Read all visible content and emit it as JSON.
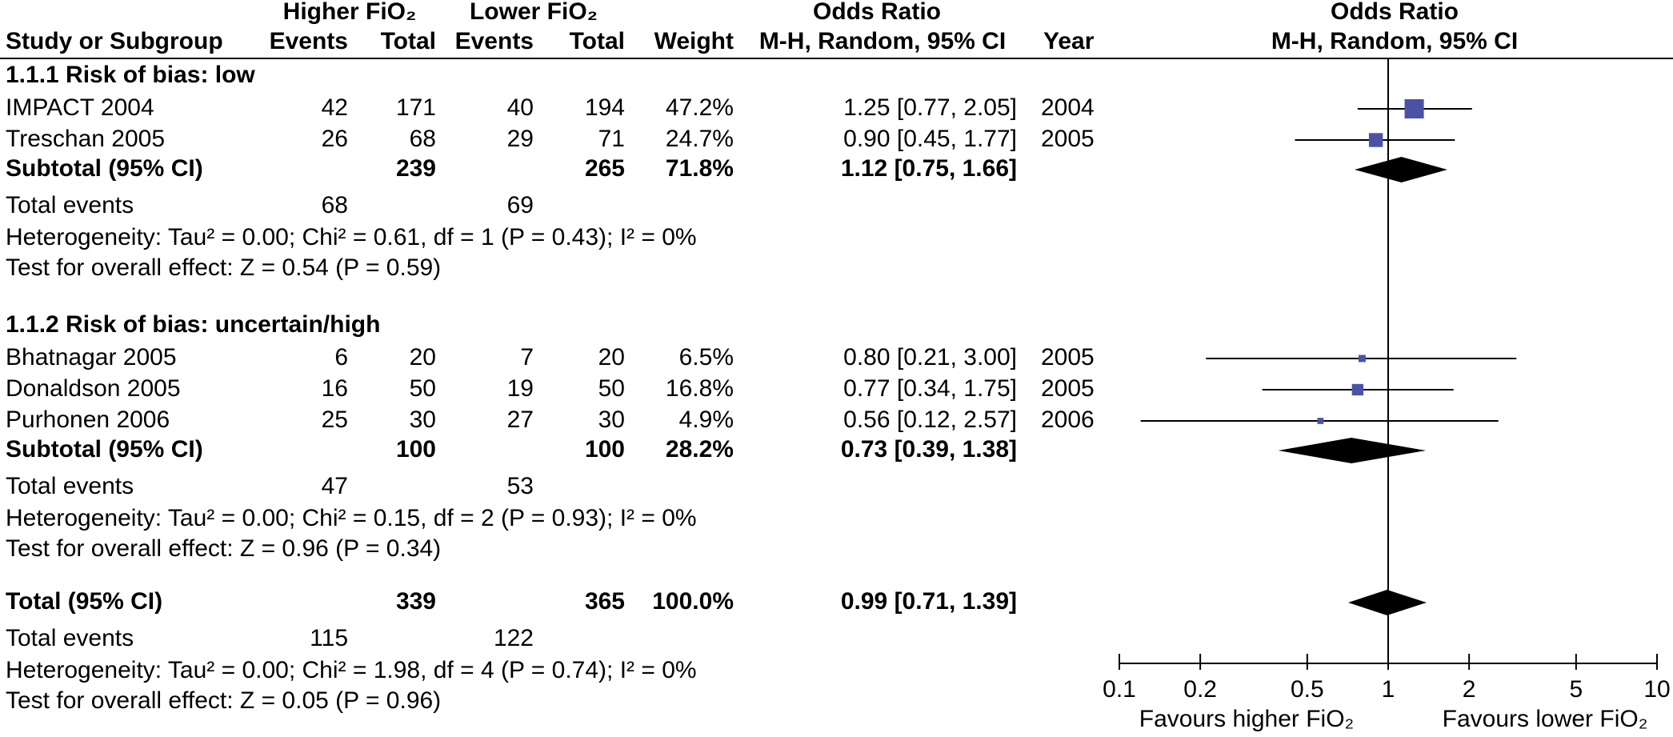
{
  "chart_data": {
    "type": "forest",
    "headers": {
      "group1": "Higher FiO₂",
      "group2": "Lower FiO₂",
      "effect": "Odds Ratio",
      "method": "M-H, Random, 95% CI",
      "study": "Study or Subgroup",
      "events1": "Events",
      "total1": "Total",
      "events2": "Events",
      "total2": "Total",
      "weight": "Weight",
      "year": "Year",
      "plot_title": "Odds Ratio",
      "plot_method": "M-H, Random, 95% CI"
    },
    "subgroups": [
      {
        "title": "1.1.1 Risk of bias: low",
        "studies": [
          {
            "name": "IMPACT 2004",
            "events1": 42,
            "total1": 171,
            "events2": 40,
            "total2": 194,
            "weight": 47.2,
            "weight_label": "47.2%",
            "or": 1.25,
            "ci": [
              0.77,
              2.05
            ],
            "or_label": "1.25 [0.77, 2.05]",
            "year": 2004
          },
          {
            "name": "Treschan 2005",
            "events1": 26,
            "total1": 68,
            "events2": 29,
            "total2": 71,
            "weight": 24.7,
            "weight_label": "24.7%",
            "or": 0.9,
            "ci": [
              0.45,
              1.77
            ],
            "or_label": "0.90 [0.45, 1.77]",
            "year": 2005
          }
        ],
        "subtotal": {
          "name": "Subtotal (95% CI)",
          "total1": 239,
          "total2": 265,
          "weight_label": "71.8%",
          "or": 1.12,
          "ci": [
            0.75,
            1.66
          ],
          "or_label": "1.12 [0.75, 1.66]"
        },
        "total_events": {
          "label": "Total events",
          "events1": 68,
          "events2": 69
        },
        "heterogeneity": "Heterogeneity: Tau² = 0.00; Chi² = 0.61, df = 1 (P = 0.43); I² = 0%",
        "overall_effect": "Test for overall effect: Z = 0.54 (P = 0.59)"
      },
      {
        "title": "1.1.2 Risk of bias: uncertain/high",
        "studies": [
          {
            "name": "Bhatnagar 2005",
            "events1": 6,
            "total1": 20,
            "events2": 7,
            "total2": 20,
            "weight": 6.5,
            "weight_label": "6.5%",
            "or": 0.8,
            "ci": [
              0.21,
              3.0
            ],
            "or_label": "0.80 [0.21, 3.00]",
            "year": 2005
          },
          {
            "name": "Donaldson 2005",
            "events1": 16,
            "total1": 50,
            "events2": 19,
            "total2": 50,
            "weight": 16.8,
            "weight_label": "16.8%",
            "or": 0.77,
            "ci": [
              0.34,
              1.75
            ],
            "or_label": "0.77 [0.34, 1.75]",
            "year": 2005
          },
          {
            "name": "Purhonen 2006",
            "events1": 25,
            "total1": 30,
            "events2": 27,
            "total2": 30,
            "weight": 4.9,
            "weight_label": "4.9%",
            "or": 0.56,
            "ci": [
              0.12,
              2.57
            ],
            "or_label": "0.56 [0.12, 2.57]",
            "year": 2006
          }
        ],
        "subtotal": {
          "name": "Subtotal (95% CI)",
          "total1": 100,
          "total2": 100,
          "weight_label": "28.2%",
          "or": 0.73,
          "ci": [
            0.39,
            1.38
          ],
          "or_label": "0.73 [0.39, 1.38]"
        },
        "total_events": {
          "label": "Total events",
          "events1": 47,
          "events2": 53
        },
        "heterogeneity": "Heterogeneity: Tau² = 0.00; Chi² = 0.15, df = 2 (P = 0.93); I² = 0%",
        "overall_effect": "Test for overall effect: Z = 0.96 (P = 0.34)"
      }
    ],
    "total": {
      "name": "Total (95% CI)",
      "total1": 339,
      "total2": 365,
      "weight_label": "100.0%",
      "or": 0.99,
      "ci": [
        0.71,
        1.39
      ],
      "or_label": "0.99 [0.71, 1.39]",
      "total_events": {
        "label": "Total events",
        "events1": 115,
        "events2": 122
      },
      "heterogeneity": "Heterogeneity: Tau² = 0.00; Chi² = 1.98, df = 4 (P = 0.74); I² = 0%",
      "overall_effect": "Test for overall effect: Z = 0.05 (P = 0.96)"
    },
    "xscale": "log",
    "xlim": [
      0.1,
      10
    ],
    "xticks": [
      0.1,
      0.2,
      0.5,
      1,
      2,
      5,
      10
    ],
    "xlabel_left": "Favours higher FiO₂",
    "xlabel_right": "Favours lower FiO₂",
    "marker_color": "#4a52a8",
    "diamond_color": "#000000"
  }
}
